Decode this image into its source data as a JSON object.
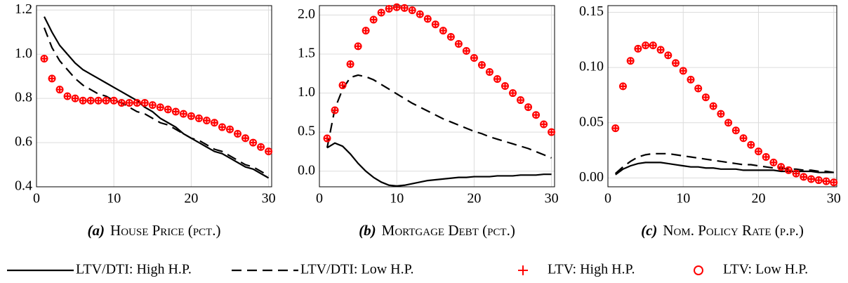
{
  "chart_data": [
    {
      "type": "line",
      "label": "(a)",
      "caption": "House Price (pct.)",
      "xlim": [
        0,
        30.4
      ],
      "xticks": [
        0,
        10,
        20,
        30
      ],
      "ylim": [
        0.4,
        1.22
      ],
      "yticks": [
        0.4,
        0.6,
        0.8,
        {
          "value": 1,
          "label": "1.0"
        },
        1.2
      ],
      "grid": true,
      "x": [
        1,
        2,
        3,
        4,
        5,
        6,
        7,
        8,
        9,
        10,
        11,
        12,
        13,
        14,
        15,
        16,
        17,
        18,
        19,
        20,
        21,
        22,
        23,
        24,
        25,
        26,
        27,
        28,
        29,
        30
      ],
      "series": [
        {
          "name": "LTV/DTI: High H.P.",
          "color": "#000000",
          "style": "solid",
          "values": [
            1.17,
            1.1,
            1.04,
            1.0,
            0.96,
            0.93,
            0.91,
            0.89,
            0.87,
            0.85,
            0.83,
            0.81,
            0.79,
            0.76,
            0.74,
            0.71,
            0.69,
            0.67,
            0.64,
            0.62,
            0.6,
            0.58,
            0.56,
            0.55,
            0.53,
            0.51,
            0.49,
            0.48,
            0.46,
            0.44
          ]
        },
        {
          "name": "LTV/DTI: Low H.P.",
          "color": "#000000",
          "style": "dashed",
          "values": [
            1.12,
            1.03,
            0.97,
            0.93,
            0.89,
            0.86,
            0.84,
            0.82,
            0.81,
            0.79,
            0.78,
            0.76,
            0.74,
            0.73,
            0.71,
            0.69,
            0.68,
            0.66,
            0.64,
            0.62,
            0.61,
            0.59,
            0.57,
            0.56,
            0.54,
            0.52,
            0.5,
            0.49,
            0.47,
            0.45
          ]
        },
        {
          "name": "LTV: High H.P.",
          "color": "#ff0000",
          "style": "plus",
          "values": [
            0.98,
            0.89,
            0.84,
            0.81,
            0.8,
            0.79,
            0.79,
            0.79,
            0.79,
            0.79,
            0.78,
            0.78,
            0.78,
            0.78,
            0.77,
            0.76,
            0.75,
            0.74,
            0.73,
            0.72,
            0.71,
            0.7,
            0.69,
            0.67,
            0.66,
            0.64,
            0.62,
            0.6,
            0.58,
            0.56
          ]
        },
        {
          "name": "LTV: Low H.P.",
          "color": "#ff0000",
          "style": "circle",
          "values": [
            0.98,
            0.89,
            0.84,
            0.81,
            0.8,
            0.79,
            0.79,
            0.79,
            0.79,
            0.79,
            0.78,
            0.78,
            0.78,
            0.78,
            0.77,
            0.76,
            0.75,
            0.74,
            0.73,
            0.72,
            0.71,
            0.7,
            0.69,
            0.67,
            0.66,
            0.64,
            0.62,
            0.6,
            0.58,
            0.56
          ]
        }
      ]
    },
    {
      "type": "line",
      "label": "(b)",
      "caption": "Mortgage Debt (pct.)",
      "xlim": [
        0,
        30.4
      ],
      "xticks": [
        0,
        10,
        20,
        30
      ],
      "ylim": [
        -0.2,
        2.12
      ],
      "yticks": [
        {
          "value": 0,
          "label": "0.0"
        },
        0.5,
        {
          "value": 1,
          "label": "1.0"
        },
        1.5,
        {
          "value": 2,
          "label": "2.0"
        }
      ],
      "grid": true,
      "x": [
        1,
        2,
        3,
        4,
        5,
        6,
        7,
        8,
        9,
        10,
        11,
        12,
        13,
        14,
        15,
        16,
        17,
        18,
        19,
        20,
        21,
        22,
        23,
        24,
        25,
        26,
        27,
        28,
        29,
        30
      ],
      "series": [
        {
          "name": "LTV/DTI: High H.P.",
          "color": "#000000",
          "style": "solid",
          "values": [
            0.3,
            0.36,
            0.32,
            0.22,
            0.1,
            0.0,
            -0.08,
            -0.14,
            -0.18,
            -0.19,
            -0.18,
            -0.16,
            -0.14,
            -0.12,
            -0.11,
            -0.1,
            -0.09,
            -0.08,
            -0.08,
            -0.07,
            -0.07,
            -0.07,
            -0.06,
            -0.06,
            -0.06,
            -0.05,
            -0.05,
            -0.05,
            -0.04,
            -0.04
          ]
        },
        {
          "name": "LTV/DTI: Low H.P.",
          "color": "#000000",
          "style": "dashed",
          "values": [
            0.3,
            0.8,
            1.05,
            1.2,
            1.23,
            1.21,
            1.17,
            1.11,
            1.05,
            0.99,
            0.93,
            0.87,
            0.82,
            0.77,
            0.72,
            0.67,
            0.63,
            0.59,
            0.55,
            0.51,
            0.48,
            0.44,
            0.41,
            0.38,
            0.35,
            0.32,
            0.29,
            0.25,
            0.21,
            0.17
          ]
        },
        {
          "name": "LTV: High H.P.",
          "color": "#ff0000",
          "style": "plus",
          "values": [
            0.42,
            0.78,
            1.1,
            1.37,
            1.6,
            1.8,
            1.94,
            2.03,
            2.08,
            2.1,
            2.09,
            2.06,
            2.01,
            1.95,
            1.88,
            1.8,
            1.72,
            1.63,
            1.54,
            1.45,
            1.36,
            1.27,
            1.18,
            1.09,
            1.0,
            0.91,
            0.82,
            0.72,
            0.6,
            0.5
          ]
        },
        {
          "name": "LTV: Low H.P.",
          "color": "#ff0000",
          "style": "circle",
          "values": [
            0.42,
            0.78,
            1.1,
            1.37,
            1.6,
            1.8,
            1.94,
            2.03,
            2.08,
            2.1,
            2.09,
            2.06,
            2.01,
            1.95,
            1.88,
            1.8,
            1.72,
            1.63,
            1.54,
            1.45,
            1.36,
            1.27,
            1.18,
            1.09,
            1.0,
            0.91,
            0.82,
            0.72,
            0.6,
            0.5
          ]
        }
      ]
    },
    {
      "type": "line",
      "label": "(c)",
      "caption": "Nom. Policy Rate (p.p.)",
      "xlim": [
        0,
        30.4
      ],
      "xticks": [
        0,
        10,
        20,
        30
      ],
      "ylim": [
        -0.008,
        0.156
      ],
      "yticks": [
        {
          "value": 0,
          "label": "0.00"
        },
        0.05,
        {
          "value": 0.1,
          "label": "0.10"
        },
        0.15
      ],
      "grid": true,
      "x": [
        1,
        2,
        3,
        4,
        5,
        6,
        7,
        8,
        9,
        10,
        11,
        12,
        13,
        14,
        15,
        16,
        17,
        18,
        19,
        20,
        21,
        22,
        23,
        24,
        25,
        26,
        27,
        28,
        29,
        30
      ],
      "series": [
        {
          "name": "LTV/DTI: High H.P.",
          "color": "#000000",
          "style": "solid",
          "values": [
            0.003,
            0.008,
            0.011,
            0.013,
            0.014,
            0.014,
            0.014,
            0.013,
            0.012,
            0.011,
            0.01,
            0.01,
            0.009,
            0.009,
            0.008,
            0.008,
            0.008,
            0.007,
            0.007,
            0.007,
            0.007,
            0.007,
            0.006,
            0.006,
            0.006,
            0.006,
            0.006,
            0.005,
            0.005,
            0.005
          ]
        },
        {
          "name": "LTV/DTI: Low H.P.",
          "color": "#000000",
          "style": "dashed",
          "values": [
            0.004,
            0.01,
            0.015,
            0.019,
            0.021,
            0.022,
            0.022,
            0.022,
            0.021,
            0.02,
            0.019,
            0.018,
            0.017,
            0.016,
            0.015,
            0.014,
            0.013,
            0.012,
            0.012,
            0.011,
            0.01,
            0.009,
            0.009,
            0.008,
            0.008,
            0.007,
            0.007,
            0.006,
            0.006,
            0.005
          ]
        },
        {
          "name": "LTV: High H.P.",
          "color": "#ff0000",
          "style": "plus",
          "values": [
            0.045,
            0.083,
            0.106,
            0.117,
            0.12,
            0.12,
            0.116,
            0.111,
            0.104,
            0.097,
            0.089,
            0.081,
            0.073,
            0.065,
            0.058,
            0.05,
            0.043,
            0.036,
            0.03,
            0.024,
            0.019,
            0.014,
            0.01,
            0.007,
            0.004,
            0.001,
            -0.001,
            -0.002,
            -0.003,
            -0.004
          ]
        },
        {
          "name": "LTV: Low H.P.",
          "color": "#ff0000",
          "style": "circle",
          "values": [
            0.045,
            0.083,
            0.106,
            0.117,
            0.12,
            0.12,
            0.116,
            0.111,
            0.104,
            0.097,
            0.089,
            0.081,
            0.073,
            0.065,
            0.058,
            0.05,
            0.043,
            0.036,
            0.03,
            0.024,
            0.019,
            0.014,
            0.01,
            0.007,
            0.004,
            0.001,
            -0.001,
            -0.002,
            -0.003,
            -0.004
          ]
        }
      ]
    }
  ]
}
